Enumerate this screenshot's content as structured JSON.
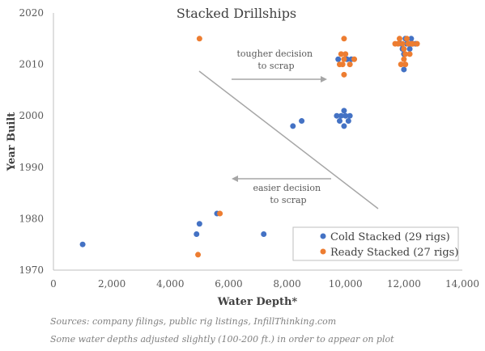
{
  "chart_data": {
    "type": "scatter",
    "title": "Stacked Drillships",
    "xlabel": "Water Depth*",
    "ylabel": "Year Built",
    "xlim": [
      0,
      14000
    ],
    "ylim": [
      1970,
      2020
    ],
    "x_ticks": [
      "0",
      "2,000",
      "4,000",
      "6,000",
      "8,000",
      "10,000",
      "12,000",
      "14,000"
    ],
    "y_ticks": [
      "1970",
      "1980",
      "1990",
      "2000",
      "2010",
      "2020"
    ],
    "grid": false,
    "legend_position": "bottom-right",
    "series": [
      {
        "name": "Cold Stacked (29 rigs)",
        "color": "#4472C4",
        "points": [
          [
            1000,
            1975
          ],
          [
            4900,
            1977
          ],
          [
            5000,
            1979
          ],
          [
            5600,
            1981
          ],
          [
            7200,
            1977
          ],
          [
            8200,
            1998
          ],
          [
            8500,
            1999
          ],
          [
            9700,
            2000
          ],
          [
            9800,
            1999
          ],
          [
            9850,
            2000
          ],
          [
            9950,
            1998
          ],
          [
            9950,
            2001
          ],
          [
            10000,
            2000
          ],
          [
            10100,
            1999
          ],
          [
            10150,
            2000
          ],
          [
            9750,
            2011
          ],
          [
            10050,
            2011
          ],
          [
            10200,
            2011
          ],
          [
            11900,
            2014
          ],
          [
            12000,
            2009
          ],
          [
            12000,
            2012
          ],
          [
            12050,
            2015
          ],
          [
            12150,
            2014
          ],
          [
            12200,
            2013
          ],
          [
            12250,
            2015
          ],
          [
            12300,
            2014
          ],
          [
            12400,
            2014
          ],
          [
            11950,
            2013
          ],
          [
            12100,
            2014
          ]
        ]
      },
      {
        "name": "Ready Stacked (27 rigs)",
        "color": "#ED7D31",
        "points": [
          [
            5000,
            2015
          ],
          [
            4950,
            1973
          ],
          [
            5700,
            1981
          ],
          [
            9950,
            2015
          ],
          [
            9950,
            2008
          ],
          [
            9850,
            2012
          ],
          [
            10000,
            2012
          ],
          [
            9900,
            2010
          ],
          [
            9800,
            2010
          ],
          [
            10150,
            2010
          ],
          [
            9950,
            2011
          ],
          [
            10300,
            2011
          ],
          [
            11700,
            2014
          ],
          [
            11850,
            2015
          ],
          [
            11900,
            2010
          ],
          [
            11950,
            2014
          ],
          [
            12000,
            2011
          ],
          [
            12000,
            2013
          ],
          [
            12050,
            2012
          ],
          [
            12050,
            2010
          ],
          [
            12100,
            2015
          ],
          [
            12150,
            2014
          ],
          [
            12200,
            2012
          ],
          [
            12250,
            2014
          ],
          [
            12300,
            2014
          ],
          [
            12450,
            2014
          ],
          [
            11800,
            2014
          ]
        ]
      }
    ],
    "annotations": [
      {
        "lines": [
          "tougher decision",
          "to scrap"
        ]
      },
      {
        "lines": [
          "easier decision",
          "to scrap"
        ]
      }
    ],
    "footnotes": [
      "Sources: company filings, public rig listings, InfillThinking.com",
      "Some water depths adjusted slightly (100-200 ft.) in order to appear on plot"
    ],
    "colors": {
      "axis": "#BFBFBF",
      "arrow": "#A6A6A6",
      "legend_border": "#BFBFBF"
    }
  }
}
